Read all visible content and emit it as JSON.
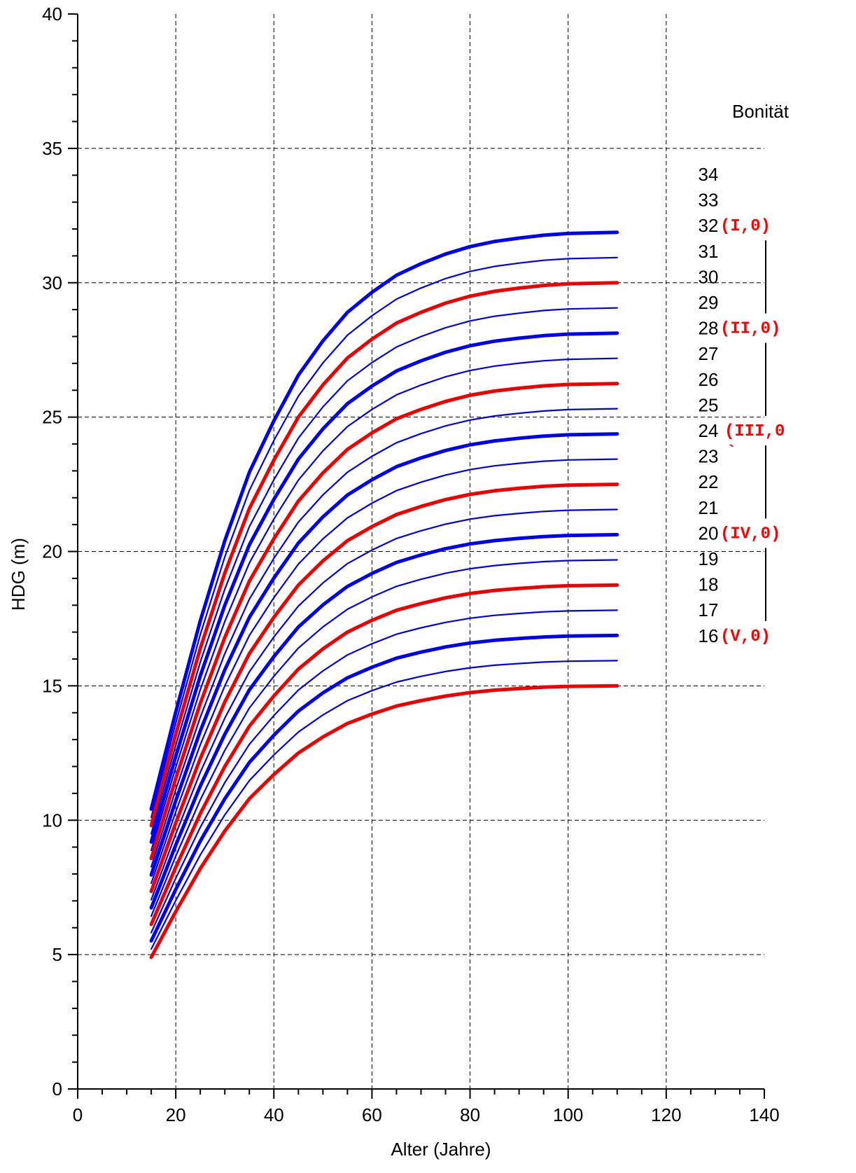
{
  "chart_data": {
    "type": "line",
    "xlabel": "Alter (Jahre)",
    "ylabel": "HDG (m)",
    "xlim": [
      0,
      140
    ],
    "ylim": [
      0,
      40
    ],
    "xticks": [
      "0",
      "20",
      "40",
      "60",
      "80",
      "100",
      "120",
      "140"
    ],
    "yticks": [
      "0",
      "5",
      "10",
      "15",
      "20",
      "25",
      "30",
      "35",
      "40"
    ],
    "grid": true,
    "legend_title": "Bonität",
    "colors": {
      "blue": "#0000ee",
      "red": "#ee0000"
    },
    "ages": [
      15,
      20,
      25,
      30,
      35,
      40,
      45,
      50,
      55,
      60,
      65,
      70,
      75,
      80,
      85,
      90,
      95,
      100,
      110
    ],
    "reference": {
      "site": 16,
      "values": [
        4.9,
        6.6,
        8.2,
        9.6,
        10.8,
        11.7,
        12.5,
        13.1,
        13.6,
        13.95,
        14.25,
        14.45,
        14.62,
        14.75,
        14.84,
        14.9,
        14.95,
        14.98,
        15.0
      ]
    },
    "series": [
      {
        "name": "34",
        "color": "blue",
        "weight": "bold"
      },
      {
        "name": "33",
        "color": "blue",
        "weight": "thin"
      },
      {
        "name": "32",
        "color": "red",
        "weight": "bold"
      },
      {
        "name": "31",
        "color": "blue",
        "weight": "thin"
      },
      {
        "name": "30",
        "color": "blue",
        "weight": "bold"
      },
      {
        "name": "29",
        "color": "blue",
        "weight": "thin"
      },
      {
        "name": "28",
        "color": "red",
        "weight": "bold"
      },
      {
        "name": "27",
        "color": "blue",
        "weight": "thin"
      },
      {
        "name": "26",
        "color": "blue",
        "weight": "bold"
      },
      {
        "name": "25",
        "color": "blue",
        "weight": "thin"
      },
      {
        "name": "24",
        "color": "red",
        "weight": "bold"
      },
      {
        "name": "23",
        "color": "blue",
        "weight": "thin"
      },
      {
        "name": "22",
        "color": "blue",
        "weight": "bold"
      },
      {
        "name": "21",
        "color": "blue",
        "weight": "thin"
      },
      {
        "name": "20",
        "color": "red",
        "weight": "bold"
      },
      {
        "name": "19",
        "color": "blue",
        "weight": "thin"
      },
      {
        "name": "18",
        "color": "blue",
        "weight": "bold"
      },
      {
        "name": "17",
        "color": "blue",
        "weight": "thin"
      },
      {
        "name": "16",
        "color": "red",
        "weight": "bold"
      }
    ],
    "class_labels": [
      {
        "site": "32",
        "text": "(I,0)"
      },
      {
        "site": "28",
        "text": "(II,0)"
      },
      {
        "site": "24",
        "text": "(III,0"
      },
      {
        "site": "20",
        "text": "(IV,0)"
      },
      {
        "site": "16",
        "text": "(V,0)"
      }
    ],
    "stray_mark": "`"
  }
}
